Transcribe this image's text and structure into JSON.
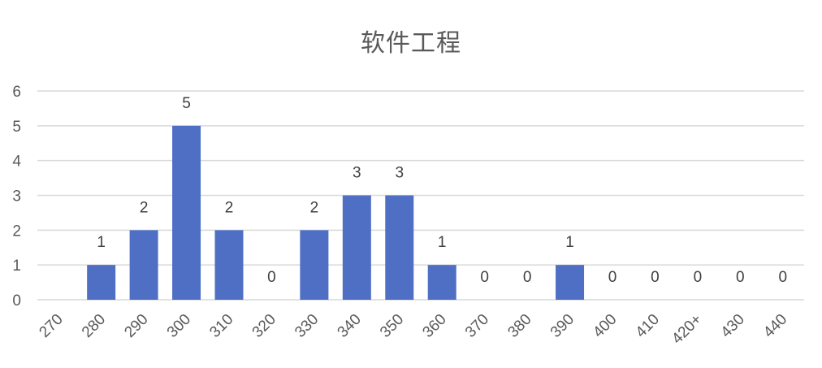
{
  "chart_data": {
    "type": "bar",
    "title": "软件工程",
    "xlabel": "",
    "ylabel": "",
    "categories": [
      "270",
      "280",
      "290",
      "300",
      "310",
      "320",
      "330",
      "340",
      "350",
      "360",
      "370",
      "380",
      "390",
      "400",
      "410",
      "420+",
      "430",
      "440"
    ],
    "values": [
      null,
      1,
      2,
      5,
      2,
      0,
      2,
      3,
      3,
      1,
      0,
      0,
      1,
      0,
      0,
      0,
      0,
      0
    ],
    "ylim": [
      0,
      6
    ],
    "yticks": [
      "0",
      "1",
      "2",
      "3",
      "4",
      "5",
      "6"
    ],
    "grid": true,
    "legend": "none",
    "data_labels": true,
    "colors": {
      "bar": "#4f6fc5",
      "grid": "#d9d9d9",
      "text": "#595959",
      "label": "#404040"
    }
  }
}
